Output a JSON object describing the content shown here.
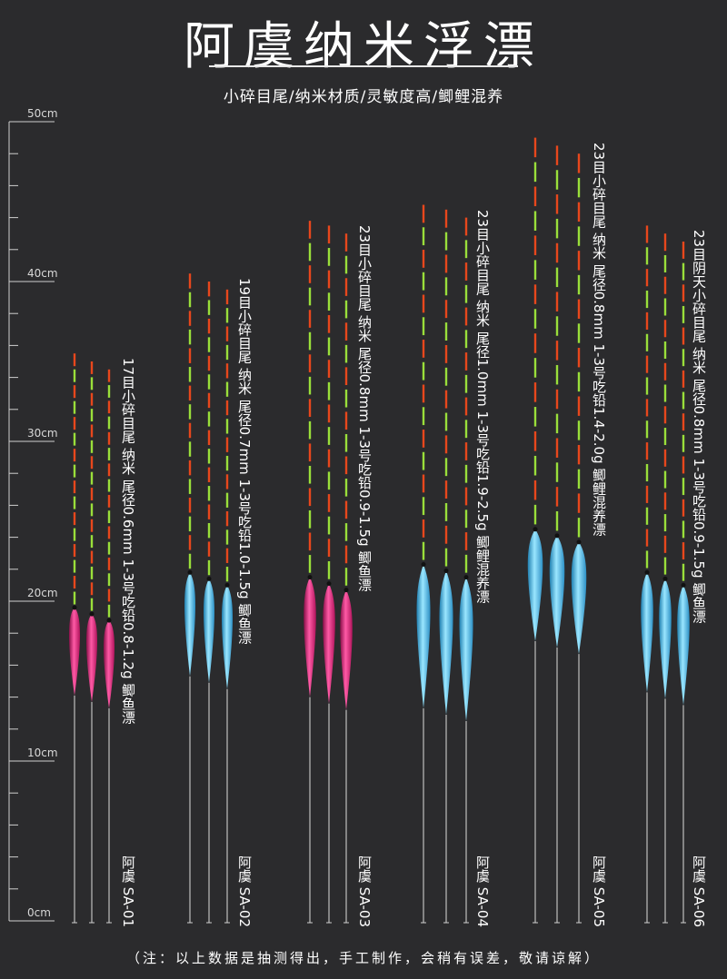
{
  "title": "阿虞纳米浮漂",
  "subtitle": "小碎目尾/纳米材质/灵敏度高/鲫鲤混养",
  "ruler": {
    "labels": [
      "50cm",
      "40cm",
      "30cm",
      "20cm",
      "10cm",
      "0cm"
    ]
  },
  "products": [
    {
      "spec": "17目小碎目尾 纳米 尾径0.6mm 1-3号吃铅0.8-1.2g 鲫鱼漂",
      "model": "阿虞 SA-01",
      "body_color": "pink",
      "heights_cm": [
        35.5,
        35.0,
        34.5
      ]
    },
    {
      "spec": "19目小碎目尾 纳米 尾径0.7mm 1-3号吃铅1.0-1.5g 鲫鱼漂",
      "model": "阿虞 SA-02",
      "body_color": "blue",
      "heights_cm": [
        40.5,
        40.0,
        39.5
      ]
    },
    {
      "spec": "23目小碎目尾 纳米 尾径0.8mm 1-3号吃铅0.9-1.5g 鲫鱼漂",
      "model": "阿虞 SA-03",
      "body_color": "pink",
      "heights_cm": [
        43.8,
        43.5,
        43.0
      ]
    },
    {
      "spec": "23目小碎目尾 纳米 尾径1.0mm 1-3号吃铅1.9-2.5g 鲫鲤混养漂",
      "model": "阿虞 SA-04",
      "body_color": "blue",
      "heights_cm": [
        44.8,
        44.5,
        44.0
      ]
    },
    {
      "spec": "23目小碎目尾 纳米 尾径0.8mm 1-3号吃铅1.4-2.0g 鲫鲤混养漂",
      "model": "阿虞 SA-05",
      "body_color": "blue",
      "heights_cm": [
        49.0,
        48.5,
        48.0
      ]
    },
    {
      "spec": "23目阴天小碎目尾 纳米 尾径0.8mm 1-3号吃铅0.9-1.5g 鲫鱼漂",
      "model": "阿虞 SA-06",
      "body_color": "blue",
      "heights_cm": [
        43.5,
        43.0,
        42.5
      ]
    }
  ],
  "footnote": "（注：以上数据是抽测得出，手工制作，会稍有误差，敬请谅解）",
  "colors": {
    "background": "#2b2b2d",
    "pink": "#e0207a",
    "blue": "#3fb0e0",
    "tip_red": "#e8471c",
    "tip_green": "#9adf3a"
  }
}
